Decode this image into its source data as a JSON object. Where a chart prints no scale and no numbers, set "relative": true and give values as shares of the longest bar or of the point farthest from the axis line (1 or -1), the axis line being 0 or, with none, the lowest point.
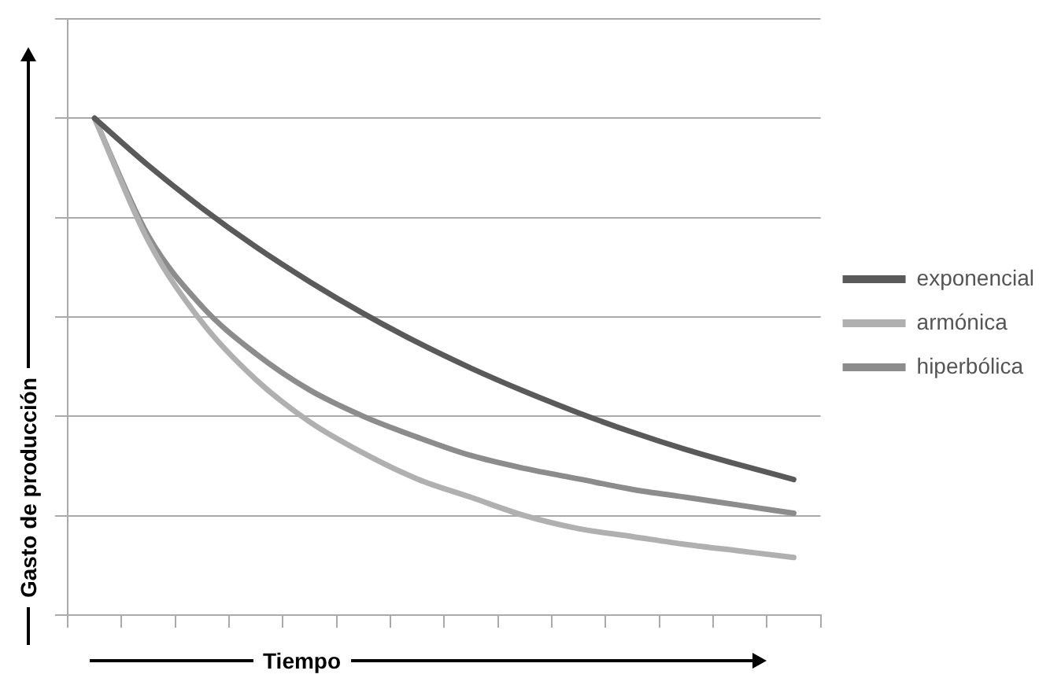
{
  "chart_data": {
    "type": "line",
    "relative": true,
    "xlabel": "Tiempo",
    "ylabel": "Gasto de producción",
    "categories": [
      null,
      null,
      null,
      null,
      null,
      null,
      null,
      null,
      null,
      null,
      null,
      null,
      null,
      null
    ],
    "series": [
      {
        "name": "exponencial",
        "color": "#5a5a5a",
        "values": [
          1,
          0.905,
          0.819,
          0.741,
          0.671,
          0.607,
          0.549,
          0.497,
          0.45,
          0.407,
          0.368,
          0.333,
          0.302,
          0.273
        ]
      },
      {
        "name": "armónica",
        "color": "#b0b0b0",
        "values": [
          1,
          0.753,
          0.589,
          0.474,
          0.389,
          0.326,
          0.274,
          0.237,
          0.2,
          0.174,
          0.158,
          0.142,
          0.129,
          0.116
        ]
      },
      {
        "name": "hiperbólica",
        "color": "#8c8c8c",
        "values": [
          1,
          0.763,
          0.621,
          0.526,
          0.453,
          0.4,
          0.358,
          0.321,
          0.295,
          0.274,
          0.253,
          0.237,
          0.221,
          0.205
        ]
      }
    ],
    "grid": "y",
    "legend": "right",
    "marker": "none",
    "line_style": "solid"
  }
}
